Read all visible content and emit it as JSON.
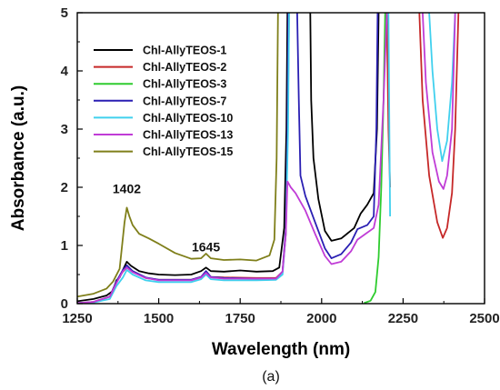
{
  "chart_data": {
    "type": "line",
    "title": "",
    "xlabel": "Wavelength (nm)",
    "ylabel": "Absorbance (a.u.)",
    "xlim": [
      1250,
      2500
    ],
    "ylim": [
      0,
      5
    ],
    "xticks": [
      1250,
      1500,
      1750,
      2000,
      2250,
      2500
    ],
    "yticks": [
      0,
      1,
      2,
      3,
      4,
      5
    ],
    "grid": false,
    "legend_position": "top-left",
    "annotations": [
      {
        "text": "1402",
        "x": 1402,
        "y": 1.9
      },
      {
        "text": "1645",
        "x": 1645,
        "y": 0.9
      }
    ],
    "caption": "(a)",
    "series": [
      {
        "name": "Chl-AllyTEOS-1",
        "color": "#000000",
        "segments": [
          [
            [
              1250,
              0.04
            ],
            [
              1300,
              0.08
            ],
            [
              1340,
              0.14
            ],
            [
              1360,
              0.22
            ],
            [
              1370,
              0.4
            ],
            [
              1380,
              0.45
            ],
            [
              1390,
              0.58
            ],
            [
              1402,
              0.72
            ],
            [
              1415,
              0.65
            ],
            [
              1440,
              0.56
            ],
            [
              1470,
              0.52
            ],
            [
              1500,
              0.5
            ],
            [
              1550,
              0.49
            ],
            [
              1600,
              0.5
            ],
            [
              1630,
              0.56
            ],
            [
              1645,
              0.62
            ],
            [
              1660,
              0.56
            ],
            [
              1700,
              0.55
            ],
            [
              1750,
              0.57
            ],
            [
              1800,
              0.55
            ],
            [
              1850,
              0.56
            ],
            [
              1870,
              0.62
            ],
            [
              1885,
              1.3
            ],
            [
              1892,
              3.0
            ],
            [
              1895,
              5.0
            ]
          ],
          [
            [
              1965,
              5.0
            ],
            [
              1968,
              3.5
            ],
            [
              1975,
              2.5
            ],
            [
              1990,
              1.8
            ],
            [
              2010,
              1.25
            ],
            [
              2030,
              1.08
            ],
            [
              2060,
              1.12
            ],
            [
              2100,
              1.3
            ],
            [
              2120,
              1.55
            ],
            [
              2140,
              1.7
            ],
            [
              2160,
              1.9
            ],
            [
              2170,
              3.0
            ],
            [
              2175,
              5.0
            ]
          ]
        ]
      },
      {
        "name": "Chl-AllyTEOS-2",
        "color": "#c62828",
        "segments": [
          [
            [
              1250,
              0.01
            ],
            [
              1300,
              0.03
            ],
            [
              1350,
              0.12
            ],
            [
              1370,
              0.38
            ],
            [
              1390,
              0.55
            ],
            [
              1402,
              0.62
            ],
            [
              1420,
              0.55
            ],
            [
              1460,
              0.44
            ],
            [
              1500,
              0.41
            ],
            [
              1600,
              0.41
            ],
            [
              1630,
              0.46
            ],
            [
              1645,
              0.54
            ],
            [
              1660,
              0.46
            ],
            [
              1700,
              0.45
            ],
            [
              1800,
              0.44
            ],
            [
              1860,
              0.44
            ],
            [
              1880,
              0.55
            ],
            [
              1890,
              1.2
            ],
            [
              1896,
              3.0
            ],
            [
              1900,
              5.0
            ]
          ],
          [
            [
              2200,
              5.0
            ],
            [
              2205,
              3.0
            ],
            [
              2210,
              2.0
            ]
          ],
          [
            [
              2300,
              5.0
            ],
            [
              2310,
              3.5
            ],
            [
              2330,
              2.2
            ],
            [
              2355,
              1.4
            ],
            [
              2372,
              1.13
            ],
            [
              2385,
              1.3
            ],
            [
              2400,
              1.9
            ],
            [
              2410,
              3.0
            ],
            [
              2420,
              5.0
            ]
          ]
        ]
      },
      {
        "name": "Chl-AllyTEOS-3",
        "color": "#2ecc2e",
        "segments": [
          [
            [
              2130,
              0.01
            ],
            [
              2150,
              0.05
            ],
            [
              2165,
              0.2
            ],
            [
              2175,
              0.8
            ],
            [
              2183,
              2.0
            ],
            [
              2190,
              3.5
            ],
            [
              2195,
              5.0
            ]
          ]
        ]
      },
      {
        "name": "Chl-AllyTEOS-7",
        "color": "#2a1fb3",
        "segments": [
          [
            [
              1250,
              0.01
            ],
            [
              1300,
              0.03
            ],
            [
              1350,
              0.12
            ],
            [
              1370,
              0.38
            ],
            [
              1390,
              0.58
            ],
            [
              1402,
              0.66
            ],
            [
              1420,
              0.56
            ],
            [
              1460,
              0.45
            ],
            [
              1500,
              0.41
            ],
            [
              1600,
              0.41
            ],
            [
              1630,
              0.46
            ],
            [
              1645,
              0.56
            ],
            [
              1660,
              0.46
            ],
            [
              1700,
              0.44
            ],
            [
              1800,
              0.43
            ],
            [
              1860,
              0.43
            ],
            [
              1880,
              0.55
            ],
            [
              1890,
              1.3
            ],
            [
              1895,
              3.0
            ],
            [
              1898,
              5.0
            ]
          ],
          [
            [
              1925,
              5.0
            ],
            [
              1930,
              3.5
            ],
            [
              1935,
              2.2
            ],
            [
              1950,
              1.85
            ],
            [
              1980,
              1.4
            ],
            [
              2010,
              0.95
            ],
            [
              2030,
              0.78
            ],
            [
              2060,
              0.85
            ],
            [
              2090,
              1.05
            ],
            [
              2110,
              1.28
            ],
            [
              2140,
              1.35
            ],
            [
              2160,
              1.5
            ],
            [
              2168,
              3.0
            ],
            [
              2172,
              5.0
            ]
          ]
        ]
      },
      {
        "name": "Chl-AllyTEOS-10",
        "color": "#40d0ee",
        "segments": [
          [
            [
              1250,
              0.01
            ],
            [
              1300,
              0.02
            ],
            [
              1350,
              0.08
            ],
            [
              1370,
              0.3
            ],
            [
              1390,
              0.45
            ],
            [
              1402,
              0.58
            ],
            [
              1420,
              0.5
            ],
            [
              1460,
              0.4
            ],
            [
              1500,
              0.37
            ],
            [
              1600,
              0.37
            ],
            [
              1630,
              0.42
            ],
            [
              1645,
              0.5
            ],
            [
              1660,
              0.42
            ],
            [
              1700,
              0.4
            ],
            [
              1800,
              0.4
            ],
            [
              1860,
              0.41
            ],
            [
              1880,
              0.5
            ],
            [
              1890,
              1.2
            ],
            [
              1897,
              3.0
            ],
            [
              1900,
              5.0
            ]
          ],
          [
            [
              2205,
              5.0
            ],
            [
              2208,
              3.0
            ],
            [
              2210,
              1.5
            ]
          ],
          [
            [
              2330,
              5.0
            ],
            [
              2340,
              4.0
            ],
            [
              2355,
              3.0
            ],
            [
              2370,
              2.45
            ],
            [
              2385,
              2.8
            ],
            [
              2400,
              3.8
            ],
            [
              2410,
              5.0
            ]
          ]
        ]
      },
      {
        "name": "Chl-AllyTEOS-13",
        "color": "#c03cd6",
        "segments": [
          [
            [
              1250,
              0.01
            ],
            [
              1300,
              0.03
            ],
            [
              1350,
              0.12
            ],
            [
              1370,
              0.35
            ],
            [
              1390,
              0.56
            ],
            [
              1402,
              0.62
            ],
            [
              1420,
              0.54
            ],
            [
              1460,
              0.44
            ],
            [
              1500,
              0.4
            ],
            [
              1600,
              0.4
            ],
            [
              1630,
              0.45
            ],
            [
              1645,
              0.53
            ],
            [
              1660,
              0.45
            ],
            [
              1700,
              0.43
            ],
            [
              1800,
              0.43
            ],
            [
              1860,
              0.43
            ],
            [
              1880,
              0.55
            ],
            [
              1890,
              1.2
            ],
            [
              1895,
              2.1
            ],
            [
              1905,
              2.0
            ],
            [
              1920,
              1.9
            ],
            [
              1950,
              1.6
            ],
            [
              1980,
              1.2
            ],
            [
              2010,
              0.82
            ],
            [
              2030,
              0.68
            ],
            [
              2060,
              0.72
            ],
            [
              2090,
              0.9
            ],
            [
              2110,
              1.1
            ],
            [
              2140,
              1.22
            ],
            [
              2160,
              1.3
            ],
            [
              2175,
              1.7
            ],
            [
              2190,
              3.5
            ],
            [
              2200,
              5.0
            ]
          ],
          [
            [
              2310,
              5.0
            ],
            [
              2320,
              3.8
            ],
            [
              2340,
              2.6
            ],
            [
              2360,
              2.1
            ],
            [
              2374,
              1.97
            ],
            [
              2385,
              2.2
            ],
            [
              2400,
              3.0
            ],
            [
              2410,
              5.0
            ]
          ]
        ]
      },
      {
        "name": "Chl-AllyTEOS-15",
        "color": "#7f7f1a",
        "segments": [
          [
            [
              1250,
              0.12
            ],
            [
              1300,
              0.17
            ],
            [
              1340,
              0.26
            ],
            [
              1360,
              0.38
            ],
            [
              1380,
              0.6
            ],
            [
              1395,
              1.4
            ],
            [
              1402,
              1.65
            ],
            [
              1410,
              1.5
            ],
            [
              1420,
              1.35
            ],
            [
              1440,
              1.2
            ],
            [
              1470,
              1.12
            ],
            [
              1500,
              1.03
            ],
            [
              1550,
              0.87
            ],
            [
              1600,
              0.77
            ],
            [
              1630,
              0.78
            ],
            [
              1645,
              0.86
            ],
            [
              1660,
              0.78
            ],
            [
              1700,
              0.75
            ],
            [
              1750,
              0.76
            ],
            [
              1800,
              0.74
            ],
            [
              1840,
              0.83
            ],
            [
              1855,
              1.1
            ],
            [
              1862,
              2.5
            ],
            [
              1866,
              5.0
            ]
          ]
        ]
      }
    ]
  }
}
